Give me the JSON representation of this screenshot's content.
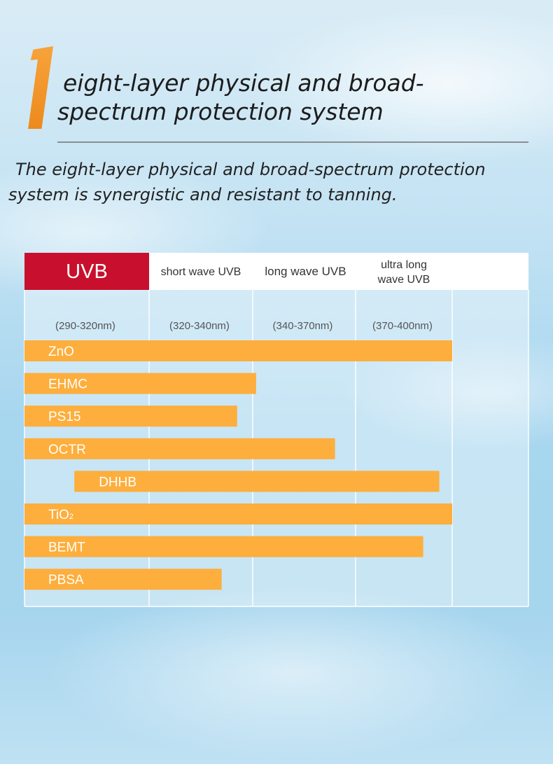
{
  "header": {
    "number": "1",
    "title_line1": "eight-layer physical and broad-",
    "title_line2": "spectrum protection system",
    "subtitle": "The eight-layer physical and broad-spectrum protection system is synergistic and resistant to tanning."
  },
  "colors": {
    "accent_orange": "#f7a43a",
    "bar_orange": "#fdae3c",
    "uvb_red": "#c8102e",
    "label_text": "#ffffff"
  },
  "chart_data": {
    "type": "bar",
    "orientation": "horizontal-range",
    "headers": [
      "UVB",
      "short wave UVB",
      "long wave UVB",
      "ultra long wave UVB"
    ],
    "bands": [
      "(290-320nm)",
      "(320-340nm)",
      "(340-370nm)",
      "(370-400nm)"
    ],
    "band_edges_nm": [
      290,
      320,
      340,
      370,
      400
    ],
    "series": [
      {
        "name": "ZnO",
        "start_nm": 290,
        "end_nm": 400
      },
      {
        "name": "EHMC",
        "start_nm": 290,
        "end_nm": 341
      },
      {
        "name": "PS15",
        "start_nm": 290,
        "end_nm": 337
      },
      {
        "name": "OCTR",
        "start_nm": 290,
        "end_nm": 364
      },
      {
        "name": "DHHB",
        "start_nm": 302,
        "end_nm": 396
      },
      {
        "name": "TiO2",
        "label_main": "TiO",
        "label_sub": "2",
        "start_nm": 290,
        "end_nm": 400
      },
      {
        "name": "BEMT",
        "start_nm": 290,
        "end_nm": 391
      },
      {
        "name": "PBSA",
        "start_nm": 290,
        "end_nm": 334
      }
    ]
  }
}
